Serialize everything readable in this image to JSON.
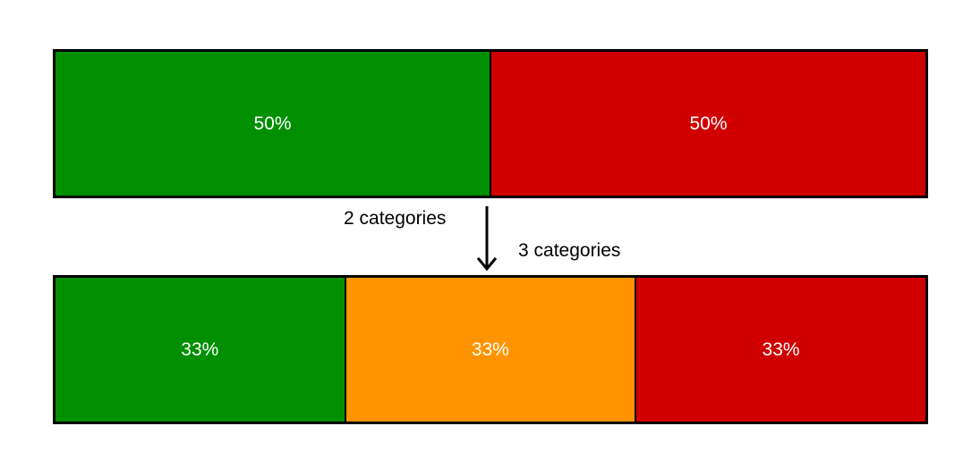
{
  "top_bar": {
    "segments": [
      {
        "label": "50%",
        "share": 0.5,
        "color": "#008f00"
      },
      {
        "label": "50%",
        "share": 0.5,
        "color": "#d00000"
      }
    ]
  },
  "bottom_bar": {
    "segments": [
      {
        "label": "33%",
        "share": 0.3333,
        "color": "#008f00"
      },
      {
        "label": "33%",
        "share": 0.3333,
        "color": "#ff9400"
      },
      {
        "label": "33%",
        "share": 0.3333,
        "color": "#d00000"
      }
    ]
  },
  "labels": {
    "before": "2 categories",
    "after": "3 categories"
  },
  "arrow_icon": "arrow-down-icon"
}
